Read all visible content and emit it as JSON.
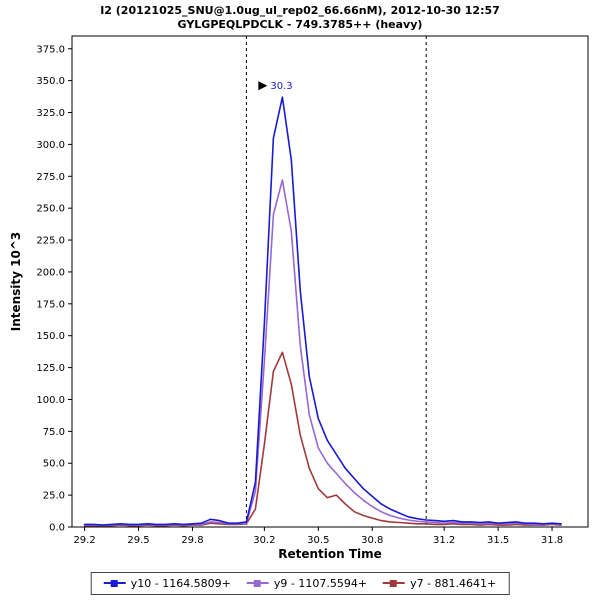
{
  "chart_data": {
    "type": "line",
    "title": "I2 (20121025_SNU@1.0ug_ul_rep02_66.66nM), 2012-10-30 12:57",
    "subtitle": "GYLGPEQLPDCLK - 749.3785++ (heavy)",
    "xlabel": "Retention Time",
    "ylabel": "Intensity 10^3",
    "xlim": [
      29.13,
      32.0
    ],
    "ylim": [
      0,
      385
    ],
    "x_ticks": [
      29.2,
      29.5,
      29.8,
      30.2,
      30.5,
      30.8,
      31.2,
      31.5,
      31.8
    ],
    "y_ticks": [
      0,
      25,
      50,
      75,
      100,
      125,
      150,
      175,
      200,
      225,
      250,
      275,
      300,
      325,
      350,
      375
    ],
    "grid": false,
    "legend_position": "bottom",
    "boundary_lines_x": [
      30.1,
      31.1
    ],
    "peak_annotation": {
      "x": 30.3,
      "y": 337,
      "label": "30.3",
      "label_color": "#1a1ad0",
      "arrow_color": "#000000"
    },
    "x": [
      29.2,
      29.25,
      29.3,
      29.35,
      29.4,
      29.45,
      29.5,
      29.55,
      29.6,
      29.65,
      29.7,
      29.75,
      29.8,
      29.85,
      29.9,
      29.95,
      30.0,
      30.05,
      30.1,
      30.15,
      30.2,
      30.25,
      30.3,
      30.35,
      30.4,
      30.45,
      30.5,
      30.55,
      30.6,
      30.65,
      30.7,
      30.75,
      30.8,
      30.85,
      30.9,
      30.95,
      31.0,
      31.05,
      31.1,
      31.15,
      31.2,
      31.25,
      31.3,
      31.35,
      31.4,
      31.45,
      31.5,
      31.55,
      31.6,
      31.65,
      31.7,
      31.75,
      31.8,
      31.85
    ],
    "series": [
      {
        "name": "y10 - 1164.5809+",
        "color": "#1a1ad0",
        "values": [
          2,
          2,
          1.5,
          2,
          2.5,
          2,
          2,
          2.5,
          2,
          2,
          2.5,
          2,
          2.5,
          3,
          6,
          5,
          3,
          3,
          4,
          35,
          160,
          305,
          337,
          288,
          185,
          118,
          85,
          68,
          57,
          46,
          38,
          30,
          24,
          18,
          14,
          11,
          8,
          6.5,
          5.5,
          5,
          4.5,
          5,
          4,
          4,
          3.5,
          4,
          3,
          3.5,
          4,
          3,
          3,
          2.5,
          3,
          2.5
        ]
      },
      {
        "name": "y9 - 1107.5594+",
        "color": "#9668d2",
        "values": [
          1.5,
          1.5,
          1.2,
          1.5,
          2,
          1.5,
          1.5,
          2,
          1.5,
          1.5,
          2,
          1.5,
          2,
          2,
          4,
          3.5,
          2.5,
          2.5,
          3,
          28,
          130,
          245,
          272,
          232,
          142,
          88,
          62,
          50,
          42,
          34,
          27,
          21,
          16,
          12,
          9,
          7,
          5.5,
          4.5,
          4,
          3.5,
          3,
          3.5,
          3,
          3,
          2.5,
          3,
          2.5,
          2.5,
          3,
          2.5,
          2,
          2,
          2.5,
          2
        ]
      },
      {
        "name": "y7 - 881.4641+",
        "color": "#a03a3a",
        "values": [
          1,
          1,
          1,
          1,
          1.5,
          1,
          1,
          1.5,
          1,
          1,
          1.5,
          1,
          1.5,
          1.5,
          3,
          2.5,
          2,
          2,
          2.5,
          14,
          65,
          122,
          137,
          112,
          72,
          46,
          30,
          23,
          25,
          18,
          12,
          9,
          7,
          5,
          4,
          3.5,
          3,
          2.5,
          2.5,
          2,
          2,
          2.5,
          2,
          2,
          1.5,
          2,
          1.5,
          1.5,
          2,
          1.5,
          1.5,
          1.5,
          2,
          1.5
        ]
      }
    ]
  }
}
